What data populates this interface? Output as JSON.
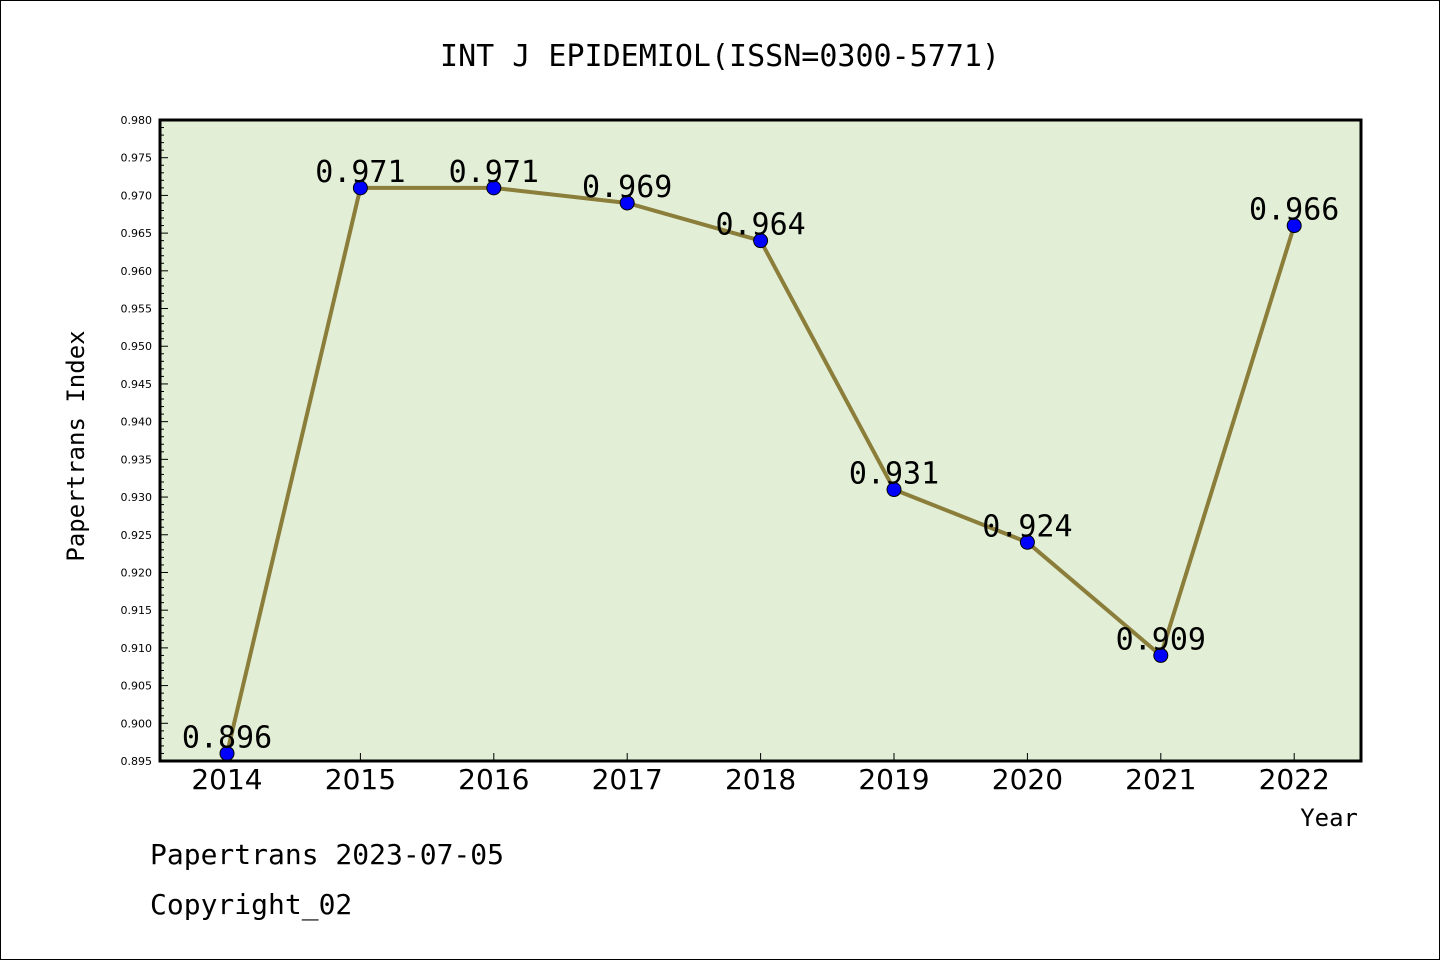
{
  "chart_data": {
    "type": "line",
    "title": "INT J EPIDEMIOL(ISSN=0300-5771)",
    "xlabel": "Year",
    "ylabel": "Papertrans Index",
    "categories": [
      "2014",
      "2015",
      "2016",
      "2017",
      "2018",
      "2019",
      "2020",
      "2021",
      "2022"
    ],
    "values": [
      0.896,
      0.971,
      0.971,
      0.969,
      0.964,
      0.931,
      0.924,
      0.909,
      0.966
    ],
    "data_labels": [
      "0.896",
      "0.971",
      "0.971",
      "0.969",
      "0.964",
      "0.931",
      "0.924",
      "0.909",
      "0.966"
    ],
    "ylim": [
      0.895,
      0.98
    ],
    "yticks": [
      "0.895",
      "0.900",
      "0.905",
      "0.910",
      "0.915",
      "0.920",
      "0.925",
      "0.930",
      "0.935",
      "0.940",
      "0.945",
      "0.950",
      "0.955",
      "0.960",
      "0.965",
      "0.970",
      "0.975",
      "0.980"
    ],
    "grid": false,
    "colors": {
      "plot_background": "#e2efd6",
      "line": "#8b7d3a",
      "marker": "#0000ff"
    }
  },
  "footer": {
    "line1": "Papertrans 2023-07-05",
    "line2": "Copyright_02"
  }
}
